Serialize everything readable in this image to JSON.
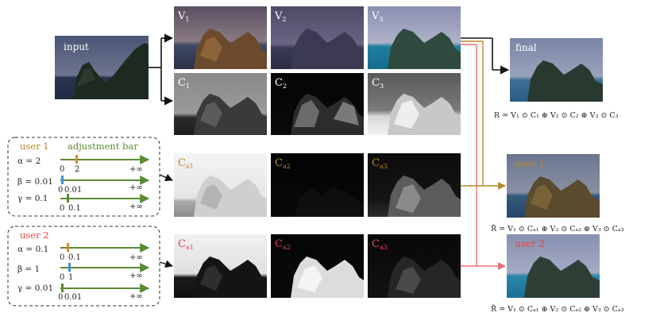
{
  "colors": {
    "user1": "#b8862b",
    "user2": "#e8444a",
    "slider": "#5a8a32",
    "marker_orange": "#e08a2c",
    "marker_blue": "#3b8fd8",
    "connector_user1": "#b8862b",
    "connector_user2": "#e87070"
  },
  "input": {
    "label": "input"
  },
  "tiles": {
    "v1": {
      "main": "V",
      "sub": "1"
    },
    "v2": {
      "main": "V",
      "sub": "2"
    },
    "v3": {
      "main": "V",
      "sub": "3"
    },
    "c1": {
      "main": "C",
      "sub": "1"
    },
    "c2": {
      "main": "C",
      "sub": "2"
    },
    "c3": {
      "main": "C",
      "sub": "3"
    },
    "u1_ca1": {
      "main": "C",
      "sub": "a1"
    },
    "u1_ca2": {
      "main": "C",
      "sub": "a2"
    },
    "u1_ca3": {
      "main": "C",
      "sub": "a3"
    },
    "u2_ca1": {
      "main": "C",
      "sub": "a1"
    },
    "u2_ca2": {
      "main": "C",
      "sub": "a2"
    },
    "u2_ca3": {
      "main": "C",
      "sub": "a3"
    }
  },
  "outputs": {
    "final": {
      "label": "final",
      "formula": "R = V₁ ⊙ C₁ ⊕ V₂ ⊙ C₂ ⊕ V₃ ⊙ C₃"
    },
    "user1": {
      "label": "user 1",
      "formula": "R̃ = V₁ ⊙ Cₐ₁ ⊕ V₂ ⊙ Cₐ₂ ⊕ V₃ ⊙ Cₐ₃"
    },
    "user2": {
      "label": "user 2",
      "formula": "R̃ = V₁ ⊙ Cₐ₁ ⊕ V₂ ⊙ Cₐ₂ ⊕ V₃ ⊙ Cₐ₃"
    }
  },
  "users": [
    {
      "title": "user 1",
      "header": "adjustment bar",
      "controls": [
        {
          "param": "α = 2",
          "ticks": [
            "0",
            "2"
          ],
          "infinity": "+∞",
          "marker": "orange"
        },
        {
          "param": "β = 0.01",
          "ticks": [
            "0",
            "0.01"
          ],
          "infinity": "+∞",
          "marker": "blue"
        },
        {
          "param": "γ = 0.1",
          "ticks": [
            "0",
            "0.1"
          ],
          "infinity": "+∞",
          "marker": "green"
        }
      ]
    },
    {
      "title": "user 2",
      "header": "",
      "controls": [
        {
          "param": "α = 0.1",
          "ticks": [
            "0",
            "0.1"
          ],
          "infinity": "+∞",
          "marker": "orange"
        },
        {
          "param": "β = 1",
          "ticks": [
            "0",
            "1"
          ],
          "infinity": "+∞",
          "marker": "blue"
        },
        {
          "param": "γ = 0.01",
          "ticks": [
            "0",
            "0.01"
          ],
          "infinity": "+∞",
          "marker": "green"
        }
      ]
    }
  ]
}
